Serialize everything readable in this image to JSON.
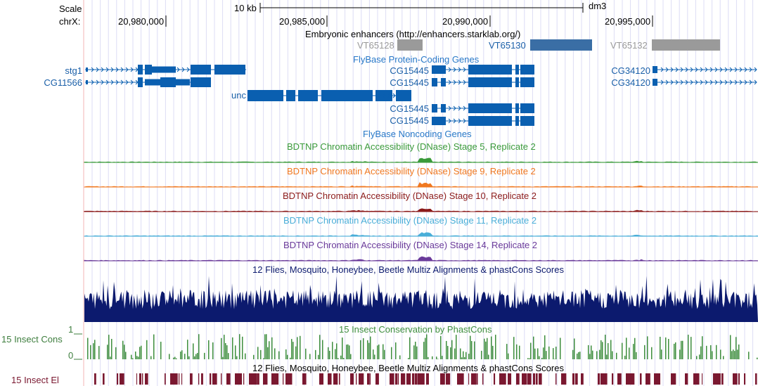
{
  "ruler": {
    "scale_label": "Scale",
    "chrom_label": "chrX:",
    "scale_bar_text": "10 kb",
    "assembly": "dm3",
    "positions": [
      "20,980,000",
      "20,985,000",
      "20,990,000",
      "20,995,000"
    ]
  },
  "tracks": {
    "enhancers": {
      "title": "Embryonic enhancers (http://enhancers.starklab.org/)",
      "items": [
        "VT65128",
        "VT65130",
        "VT65132"
      ]
    },
    "flybase_coding": {
      "title": "FlyBase Protein-Coding Genes",
      "genes": {
        "stg1": "stg1",
        "cg11566": "CG11566",
        "unc": "unc",
        "cg15445_a": "CG15445",
        "cg15445_b": "CG15445",
        "cg15445_c": "CG15445",
        "cg15445_d": "CG15445",
        "cg34120_a": "CG34120",
        "cg34120_b": "CG34120"
      }
    },
    "flybase_noncoding": {
      "title": "FlyBase Noncoding Genes"
    },
    "dnase": [
      {
        "title": "BDTNP Chromatin Accessibility (DNase) Stage 5, Replicate 2",
        "color": "#3a9a3a"
      },
      {
        "title": "BDTNP Chromatin Accessibility (DNase) Stage 9, Replicate 2",
        "color": "#f07820"
      },
      {
        "title": "BDTNP Chromatin Accessibility (DNase) Stage 10, Replicate 2",
        "color": "#8b1a1a"
      },
      {
        "title": "BDTNP Chromatin Accessibility (DNase) Stage 11, Replicate 2",
        "color": "#4aaed8"
      },
      {
        "title": "BDTNP Chromatin Accessibility (DNase) Stage 14, Replicate 2",
        "color": "#6a3a9a"
      }
    ],
    "multiz": {
      "title": "12 Flies, Mosquito, Honeybee, Beetle Multiz Alignments & phastCons Scores"
    },
    "phastcons": {
      "title": "15 Insect Conservation by PhastCons",
      "side_label": "15 Insect Cons",
      "axis_max": "1",
      "axis_min": "0"
    },
    "elements": {
      "title": "12 Flies, Mosquito, Honeybee, Beetle Multiz Alignments & phastCons Scores",
      "side_label": "15 Insect El"
    }
  },
  "colors": {
    "gene": "#0a5fb0",
    "gene_label": "#1a5fa8",
    "flybase_title": "#2878c8",
    "enhancer_gray": "#9a9a9a",
    "enhancer_blue": "#3a6ea5",
    "multiz": "#0c1a6e",
    "phastcons": "#3e8e3e",
    "elements": "#7a1830",
    "side_green": "#3e7e3e",
    "side_red": "#7a1830"
  }
}
